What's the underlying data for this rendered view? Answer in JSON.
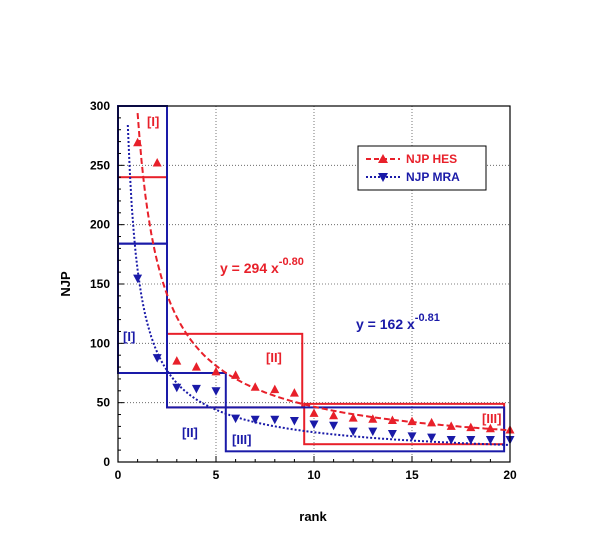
{
  "chart_data": {
    "type": "scatter",
    "xlabel": "rank",
    "ylabel": "NJP",
    "xlim": [
      0,
      20
    ],
    "ylim": [
      0,
      300
    ],
    "x_ticks": [
      "0",
      "5",
      "10",
      "15",
      "20"
    ],
    "y_ticks": [
      "0",
      "50",
      "100",
      "150",
      "200",
      "250",
      "300"
    ],
    "grid": "dotted",
    "legend_position": "top-right",
    "series": [
      {
        "name": "NJP HES",
        "color": "#e8202a",
        "marker": "triangle-up",
        "x": [
          1,
          2,
          3,
          4,
          5,
          6,
          7,
          8,
          9,
          10,
          11,
          12,
          13,
          14,
          15,
          16,
          17,
          18,
          19,
          20
        ],
        "y": [
          269,
          252,
          85,
          80,
          76,
          73,
          63,
          61,
          58,
          41,
          39,
          37,
          36,
          35,
          34,
          33,
          30,
          29,
          28,
          27
        ],
        "fit": {
          "a": 294,
          "b": -0.8,
          "label_base": "y = 294  x",
          "label_exp": "-0.80"
        }
      },
      {
        "name": "NJP MRA",
        "color": "#1a1aa8",
        "marker": "triangle-down",
        "x": [
          1,
          2,
          3,
          4,
          5,
          6,
          7,
          8,
          9,
          10,
          11,
          12,
          13,
          14,
          15,
          16,
          17,
          18,
          19,
          20
        ],
        "y": [
          155,
          88,
          63,
          62,
          60,
          37,
          36,
          36,
          35,
          32,
          31,
          26,
          26,
          24,
          22,
          21,
          19,
          19,
          19,
          19
        ],
        "fit": {
          "a": 162,
          "b": -0.81,
          "label_base": "y = 162  x",
          "label_exp": "-0.81"
        }
      }
    ],
    "region_labels": {
      "hes_1": "[I]",
      "hes_2": "[II]",
      "hes_3": "[III]",
      "mra_1": "[I]",
      "mra_2": "[II]",
      "mra_3": "[III]"
    }
  }
}
